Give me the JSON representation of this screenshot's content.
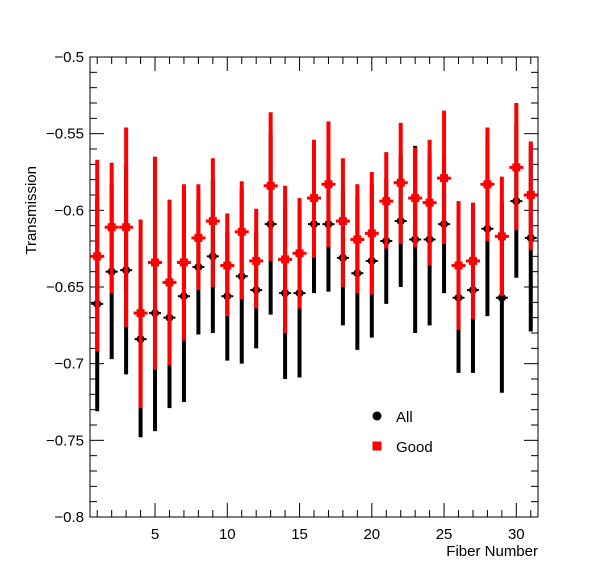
{
  "chart_data": {
    "type": "scatter",
    "xlabel": "Fiber Number",
    "ylabel": "Transmission",
    "xlim": [
      0.5,
      31.5
    ],
    "ylim": [
      -0.8,
      -0.5
    ],
    "x_ticks": [
      5,
      10,
      15,
      20,
      25,
      30
    ],
    "y_ticks": [
      -0.8,
      -0.75,
      -0.7,
      -0.65,
      -0.6,
      -0.55,
      -0.5
    ],
    "y_tick_labels": [
      "−0.8",
      "−0.75",
      "−0.7",
      "−0.65",
      "−0.6",
      "−0.55",
      "−0.5"
    ],
    "grid": false,
    "legend_position": "lower-right inside plot",
    "series": [
      {
        "name": "All",
        "marker": "circle",
        "color": "#000000",
        "x": [
          1,
          2,
          3,
          4,
          5,
          6,
          7,
          8,
          9,
          10,
          11,
          12,
          13,
          14,
          15,
          16,
          17,
          18,
          19,
          20,
          21,
          22,
          23,
          24,
          25,
          26,
          27,
          28,
          29,
          30,
          31
        ],
        "y": [
          -0.661,
          -0.64,
          -0.639,
          -0.684,
          -0.667,
          -0.67,
          -0.656,
          -0.637,
          -0.63,
          -0.656,
          -0.643,
          -0.652,
          -0.609,
          -0.654,
          -0.654,
          -0.609,
          -0.609,
          -0.631,
          -0.641,
          -0.633,
          -0.62,
          -0.607,
          -0.619,
          -0.619,
          -0.609,
          -0.657,
          -0.652,
          -0.612,
          -0.657,
          -0.594,
          -0.618
        ],
        "err_low": [
          -0.731,
          -0.697,
          -0.707,
          -0.748,
          -0.744,
          -0.729,
          -0.725,
          -0.681,
          -0.68,
          -0.698,
          -0.7,
          -0.69,
          -0.668,
          -0.71,
          -0.709,
          -0.654,
          -0.653,
          -0.675,
          -0.691,
          -0.683,
          -0.661,
          -0.65,
          -0.68,
          -0.675,
          -0.654,
          -0.706,
          -0.706,
          -0.669,
          -0.719,
          -0.644,
          -0.679
        ],
        "err_high": [
          -0.591,
          -0.583,
          -0.571,
          -0.62,
          -0.59,
          -0.611,
          -0.587,
          -0.593,
          -0.58,
          -0.614,
          -0.586,
          -0.614,
          -0.55,
          -0.598,
          -0.599,
          -0.564,
          -0.565,
          -0.587,
          -0.591,
          -0.583,
          -0.579,
          -0.564,
          -0.558,
          -0.563,
          -0.564,
          -0.608,
          -0.598,
          -0.555,
          -0.595,
          -0.544,
          -0.557
        ]
      },
      {
        "name": "Good",
        "marker": "square",
        "color": "#ff0000",
        "x": [
          1,
          2,
          3,
          4,
          5,
          6,
          7,
          8,
          9,
          10,
          11,
          12,
          13,
          14,
          15,
          16,
          17,
          18,
          19,
          20,
          21,
          22,
          23,
          24,
          25,
          26,
          27,
          28,
          29,
          30,
          31
        ],
        "y": [
          -0.63,
          -0.611,
          -0.611,
          -0.667,
          -0.634,
          -0.647,
          -0.634,
          -0.618,
          -0.607,
          -0.636,
          -0.614,
          -0.633,
          -0.584,
          -0.632,
          -0.628,
          -0.592,
          -0.583,
          -0.607,
          -0.619,
          -0.615,
          -0.594,
          -0.582,
          -0.592,
          -0.595,
          -0.579,
          -0.636,
          -0.633,
          -0.583,
          -0.617,
          -0.572,
          -0.59
        ],
        "err_low": [
          -0.692,
          -0.654,
          -0.676,
          -0.729,
          -0.704,
          -0.701,
          -0.685,
          -0.652,
          -0.65,
          -0.669,
          -0.658,
          -0.664,
          -0.633,
          -0.68,
          -0.664,
          -0.631,
          -0.624,
          -0.65,
          -0.654,
          -0.655,
          -0.625,
          -0.622,
          -0.624,
          -0.636,
          -0.622,
          -0.678,
          -0.671,
          -0.62,
          -0.656,
          -0.613,
          -0.626
        ],
        "err_high": [
          -0.567,
          -0.569,
          -0.546,
          -0.606,
          -0.565,
          -0.593,
          -0.583,
          -0.583,
          -0.566,
          -0.602,
          -0.581,
          -0.599,
          -0.536,
          -0.584,
          -0.592,
          -0.554,
          -0.542,
          -0.566,
          -0.583,
          -0.575,
          -0.562,
          -0.543,
          -0.559,
          -0.554,
          -0.535,
          -0.594,
          -0.595,
          -0.546,
          -0.578,
          -0.53,
          -0.555
        ]
      }
    ]
  }
}
